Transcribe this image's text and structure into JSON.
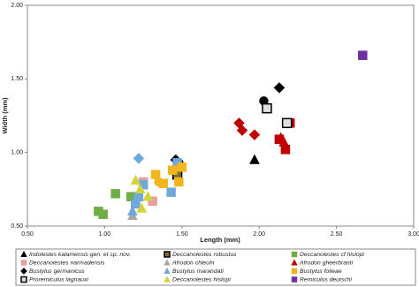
{
  "chart_data": {
    "type": "scatter",
    "xlabel": "Length (mm)",
    "ylabel": "Width (mm)",
    "xlim": [
      0.5,
      3.0
    ],
    "ylim": [
      0.5,
      2.0
    ],
    "xticks": [
      {
        "value": 0.5,
        "label": "0.50"
      },
      {
        "value": 1.0,
        "label": "1.00"
      },
      {
        "value": 1.5,
        "label": "1.50"
      },
      {
        "value": 2.0,
        "label": "2.00"
      },
      {
        "value": 2.5,
        "label": "2.50"
      },
      {
        "value": 3.0,
        "label": "3.00"
      }
    ],
    "yticks": [
      {
        "value": 0.5,
        "label": "0.50"
      },
      {
        "value": 1.0,
        "label": "1.00"
      },
      {
        "value": 1.5,
        "label": "1.50"
      },
      {
        "value": 2.0,
        "label": "2.00"
      }
    ],
    "series": [
      {
        "name": "Indolestes kalamensis gen. et sp. nov.",
        "color": "#000000",
        "x": [
          1.97
        ],
        "values": [
          0.95
        ],
        "markers": [
          "triangle"
        ]
      },
      {
        "name": "Deccanolestes robustus",
        "color": "#7f6f2f",
        "stroke": "#000000",
        "x": [
          1.47
        ],
        "values": [
          0.85
        ],
        "markers": [
          "square"
        ]
      },
      {
        "name": "Deccanolestes cf hislopi",
        "color": "#70ad47",
        "x": [
          0.96,
          0.99,
          1.07,
          1.17,
          1.2
        ],
        "values": [
          0.6,
          0.58,
          0.72,
          0.7,
          0.66
        ],
        "markers": [
          "square",
          "square",
          "square",
          "square",
          "square"
        ]
      },
      {
        "name": "Deccanolestes narmadensis",
        "color": "#e6a0a0",
        "x": [
          1.31,
          1.25
        ],
        "values": [
          0.67,
          0.8
        ],
        "markers": [
          "square",
          "square"
        ]
      },
      {
        "name": "Afrodon chleuhi",
        "color": "#a6a6a6",
        "x": [
          1.18
        ],
        "values": [
          0.57
        ],
        "markers": [
          "triangle"
        ]
      },
      {
        "name": "Afrodon gheerbranti",
        "color": "#c00000",
        "x": [
          2.14,
          2.16,
          2.2,
          2.13,
          2.17,
          1.87,
          1.89,
          1.97
        ],
        "values": [
          1.1,
          1.07,
          1.2,
          1.09,
          1.02,
          1.2,
          1.15,
          1.12
        ],
        "markers": [
          "triangle",
          "triangle",
          "square",
          "square",
          "square",
          "diamond",
          "diamond",
          "diamond"
        ]
      },
      {
        "name": "Bustylus germanicus",
        "color": "#000000",
        "x": [
          2.13,
          1.46,
          2.03,
          1.48
        ],
        "values": [
          1.44,
          0.95,
          1.35,
          0.93
        ],
        "markers": [
          "diamond",
          "diamond",
          "circle",
          "circle"
        ]
      },
      {
        "name": "Bustylus marandati",
        "color": "#6fa8dc",
        "x": [
          1.18,
          1.22,
          1.22,
          1.25,
          1.2,
          1.43,
          1.47
        ],
        "values": [
          0.6,
          0.96,
          0.7,
          0.78,
          0.65,
          0.73,
          0.93
        ],
        "markers": [
          "triangle",
          "diamond",
          "square",
          "square",
          "square",
          "square",
          "square"
        ]
      },
      {
        "name": "Bustylus folieae",
        "color": "#f2b61d",
        "x": [
          1.33,
          1.44,
          1.5,
          1.48,
          1.38,
          1.35
        ],
        "values": [
          0.85,
          0.88,
          0.9,
          0.8,
          0.79,
          0.8
        ],
        "markers": [
          "square",
          "square",
          "square",
          "square",
          "square",
          "circle"
        ]
      },
      {
        "name": "Proremiculus lagnauxi",
        "color": "#e0e0e0",
        "stroke": "#000000",
        "x": [
          2.05,
          2.18
        ],
        "values": [
          1.3,
          1.2
        ],
        "markers": [
          "square",
          "square"
        ]
      },
      {
        "name": "Deccanolestes hislopi",
        "color": "#d4d43a",
        "x": [
          1.24,
          1.28,
          1.2,
          1.23
        ],
        "values": [
          0.62,
          0.7,
          0.81,
          0.75
        ],
        "markers": [
          "triangle",
          "triangle",
          "triangle",
          "triangle"
        ]
      },
      {
        "name": "Remiculus deutschi",
        "color": "#7030a0",
        "x": [
          2.67
        ],
        "values": [
          1.66
        ],
        "markers": [
          "square"
        ]
      }
    ]
  }
}
